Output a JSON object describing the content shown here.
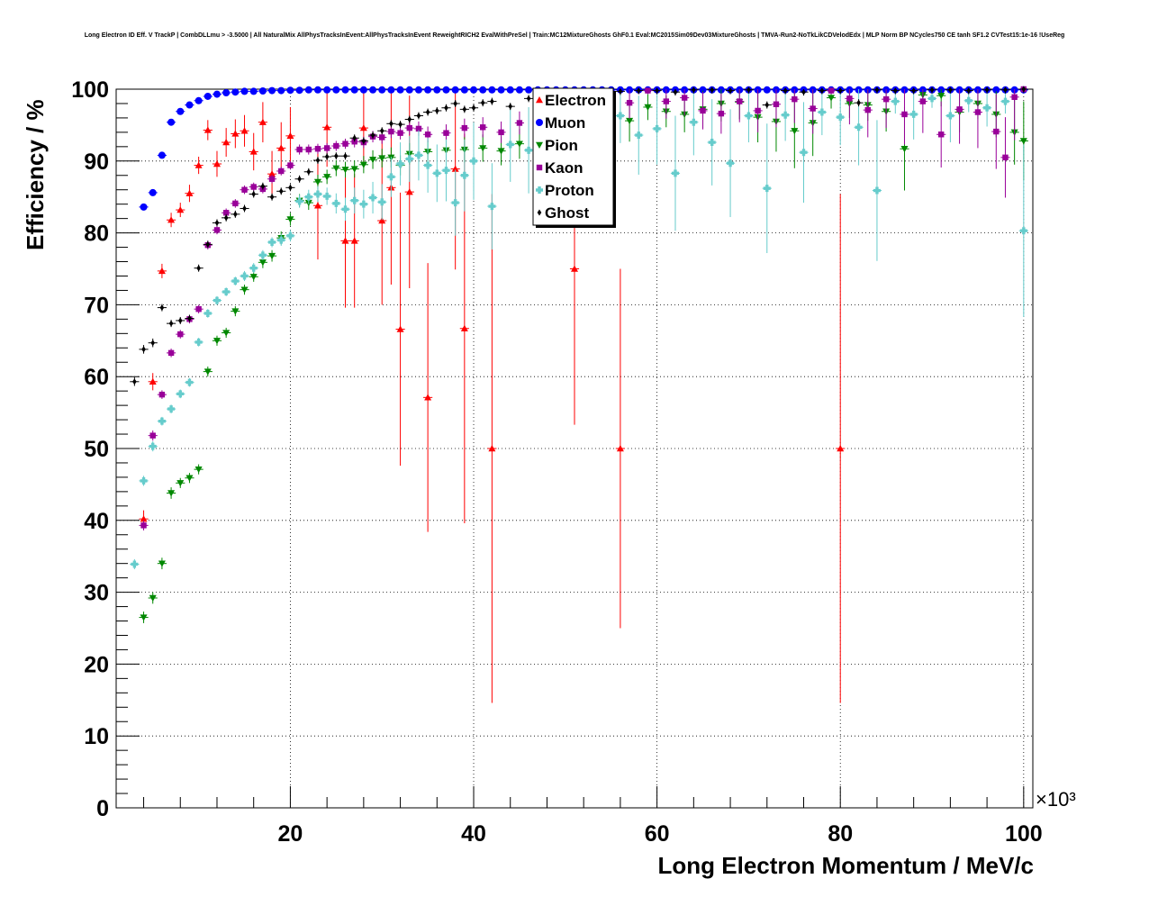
{
  "title": "Long Electron ID Eff. V TrackP | CombDLLmu > -3.5000 | All NaturalMix AllPhysTracksInEvent:AllPhysTracksInEvent ReweightRICH2 EvalWithPreSel | Train:MC12MixtureGhosts GhF0.1 Eval:MC2015Sim09Dev03MixtureGhosts | TMVA-Run2-NoTkLikCDVelodEdx | MLP Norm BP NCycles750 CE tanh SF1.2 CVTest15:1e-16 !UseReg",
  "chart_data": {
    "type": "scatter",
    "xlabel": "Long Electron Momentum / MeV/c",
    "ylabel": "Efficiency / %",
    "x_multiplier": "×10³",
    "xlim": [
      1000,
      101000
    ],
    "ylim": [
      0,
      100
    ],
    "x_ticks": [
      20000,
      40000,
      60000,
      80000,
      100000
    ],
    "x_tick_labels": [
      "20",
      "40",
      "60",
      "80",
      "100"
    ],
    "y_ticks": [
      0,
      10,
      20,
      30,
      40,
      50,
      60,
      70,
      80,
      90,
      100
    ],
    "y_tick_labels": [
      "0",
      "10",
      "20",
      "30",
      "40",
      "50",
      "60",
      "70",
      "80",
      "90",
      "100"
    ],
    "grid": true,
    "legend_position": "top-center",
    "series": [
      {
        "name": "Electron",
        "color": "#ff0000",
        "marker": "triangle-up",
        "x": [
          4000,
          5000,
          6000,
          7000,
          8000,
          9000,
          10000,
          11000,
          12000,
          13000,
          14000,
          15000,
          16000,
          17000,
          18000,
          19000,
          20000,
          23000,
          24000,
          26000,
          27000,
          28000,
          30000,
          31000,
          32000,
          33000,
          35000,
          38000,
          39000,
          42000,
          51000,
          56000,
          80000
        ],
        "y": [
          40.2,
          59.3,
          74.7,
          81.8,
          83.2,
          85.5,
          89.4,
          94.3,
          89.6,
          92.6,
          93.8,
          94.2,
          91.3,
          95.4,
          88.2,
          91.8,
          93.5,
          83.8,
          94.7,
          78.9,
          78.9,
          94.6,
          81.7,
          86.3,
          66.6,
          85.7,
          57.1,
          88.9,
          66.7,
          50.0,
          75.0,
          50.0,
          50.0
        ],
        "err": [
          1.2,
          1.2,
          1.0,
          1.0,
          1.0,
          1.2,
          1.2,
          1.4,
          1.8,
          2.0,
          2.0,
          2.2,
          2.6,
          2.8,
          3.2,
          3.6,
          4.0,
          7.5,
          5.5,
          9.3,
          9.3,
          5.5,
          11.7,
          13.5,
          19.0,
          13.4,
          18.7,
          14.0,
          27.1,
          35.4,
          21.7,
          25.0,
          35.4
        ]
      },
      {
        "name": "Muon",
        "color": "#0000ff",
        "marker": "circle",
        "x": [
          4000,
          5000,
          6000,
          7000,
          8000,
          9000,
          10000,
          11000,
          12000,
          13000,
          14000,
          15000,
          16000,
          17000,
          18000,
          19000,
          20000,
          21000,
          22000,
          23000,
          24000,
          25000,
          26000,
          27000,
          28000,
          29000,
          30000,
          31000,
          32000,
          33000,
          34000,
          35000,
          36000,
          37000,
          38000,
          39000,
          40000,
          41000,
          42000,
          43000,
          44000,
          45000,
          46000,
          47000,
          48000,
          49000,
          50000,
          51000,
          52000,
          53000,
          54000,
          55000,
          56000,
          57000,
          58000,
          59000,
          60000,
          61000,
          62000,
          63000,
          64000,
          65000,
          66000,
          67000,
          68000,
          69000,
          70000,
          71000,
          72000,
          73000,
          74000,
          75000,
          76000,
          77000,
          78000,
          79000,
          80000,
          81000,
          82000,
          83000,
          84000,
          85000,
          86000,
          87000,
          88000,
          89000,
          90000,
          91000,
          92000,
          93000,
          94000,
          95000,
          96000,
          97000,
          98000,
          99000,
          100000
        ],
        "y": [
          83.6,
          85.6,
          90.8,
          95.4,
          96.9,
          97.8,
          98.4,
          99.0,
          99.3,
          99.5,
          99.6,
          99.7,
          99.7,
          99.75,
          99.8,
          99.8,
          99.85,
          99.85,
          99.9,
          99.9,
          99.9,
          99.9,
          99.9,
          99.9,
          99.9,
          99.9,
          99.9,
          99.9,
          99.9,
          99.9,
          99.9,
          99.9,
          99.9,
          99.9,
          99.9,
          99.9,
          99.9,
          99.9,
          99.9,
          99.9,
          99.9,
          99.9,
          99.9,
          99.9,
          99.9,
          99.9,
          99.9,
          99.9,
          99.9,
          99.9,
          99.9,
          99.9,
          99.9,
          99.9,
          99.9,
          99.9,
          99.9,
          99.9,
          99.9,
          99.9,
          99.9,
          99.9,
          99.9,
          99.9,
          99.9,
          99.9,
          99.9,
          99.9,
          99.9,
          99.9,
          99.9,
          99.9,
          99.9,
          99.9,
          99.9,
          99.9,
          99.9,
          99.9,
          99.9,
          99.9,
          99.9,
          99.9,
          99.9,
          99.9,
          99.9,
          99.9,
          99.9,
          99.9,
          99.9,
          99.9,
          99.9,
          99.9,
          99.9,
          99.9,
          99.9,
          99.9,
          99.9
        ],
        "err": []
      },
      {
        "name": "Pion",
        "color": "#008800",
        "marker": "triangle-down",
        "x": [
          4000,
          5000,
          6000,
          7000,
          8000,
          9000,
          10000,
          11000,
          12000,
          13000,
          14000,
          15000,
          16000,
          17000,
          18000,
          19000,
          20000,
          21000,
          22000,
          23000,
          24000,
          25000,
          26000,
          27000,
          28000,
          29000,
          30000,
          31000,
          32000,
          33000,
          35000,
          37000,
          39000,
          41000,
          43000,
          45000,
          47000,
          49000,
          51000,
          53000,
          55000,
          57000,
          59000,
          61000,
          63000,
          65000,
          67000,
          69000,
          71000,
          73000,
          75000,
          77000,
          79000,
          81000,
          83000,
          85000,
          87000,
          89000,
          91000,
          93000,
          95000,
          97000,
          99000,
          100000
        ],
        "y": [
          26.5,
          29.2,
          34.0,
          43.8,
          45.2,
          45.9,
          47.1,
          60.7,
          65.0,
          66.1,
          69.1,
          72.1,
          73.9,
          75.9,
          76.8,
          79.3,
          81.9,
          84.5,
          84.2,
          87.1,
          87.8,
          89.0,
          88.8,
          88.9,
          89.5,
          90.2,
          90.4,
          90.5,
          89.4,
          91.0,
          91.3,
          91.5,
          91.6,
          91.8,
          91.4,
          92.4,
          92.9,
          93.0,
          95.0,
          93.2,
          94.8,
          95.6,
          97.5,
          96.9,
          96.5,
          97.2,
          98.0,
          98.2,
          96.1,
          95.5,
          94.2,
          95.3,
          98.8,
          98.0,
          97.8,
          96.9,
          91.7,
          99.2,
          99.1,
          96.8,
          98.0,
          96.5,
          94.0,
          92.8
        ],
        "err": [
          0.8,
          0.8,
          0.8,
          0.8,
          0.7,
          0.7,
          0.7,
          0.7,
          0.7,
          0.7,
          0.7,
          0.7,
          0.7,
          0.8,
          0.8,
          0.9,
          0.9,
          0.9,
          1.0,
          1.0,
          1.0,
          1.1,
          1.1,
          1.2,
          1.2,
          1.3,
          1.3,
          1.4,
          1.4,
          1.5,
          1.6,
          1.7,
          1.8,
          1.9,
          2.0,
          2.1,
          2.3,
          2.4,
          2.5,
          2.6,
          2.8,
          2.9,
          1.8,
          2.2,
          2.5,
          2.6,
          2.5,
          2.4,
          3.5,
          4.2,
          5.2,
          4.6,
          1.5,
          2.0,
          2.2,
          2.8,
          5.8,
          1.3,
          1.5,
          2.8,
          2.2,
          3.2,
          4.5,
          5.5
        ]
      },
      {
        "name": "Kaon",
        "color": "#990099",
        "marker": "square",
        "x": [
          4000,
          5000,
          6000,
          7000,
          8000,
          9000,
          10000,
          11000,
          12000,
          13000,
          14000,
          15000,
          16000,
          17000,
          18000,
          19000,
          20000,
          21000,
          22000,
          23000,
          24000,
          25000,
          26000,
          27000,
          28000,
          29000,
          30000,
          31000,
          32000,
          33000,
          34000,
          35000,
          37000,
          39000,
          41000,
          43000,
          45000,
          47000,
          49000,
          51000,
          53000,
          55000,
          57000,
          59000,
          61000,
          63000,
          65000,
          67000,
          69000,
          71000,
          73000,
          75000,
          77000,
          79000,
          81000,
          83000,
          85000,
          87000,
          89000,
          91000,
          93000,
          95000,
          97000,
          98000,
          99000,
          100000
        ],
        "y": [
          39.3,
          51.8,
          57.5,
          63.3,
          65.9,
          68.0,
          69.4,
          78.3,
          80.4,
          82.8,
          84.1,
          86.0,
          86.4,
          86.1,
          87.5,
          88.6,
          89.4,
          91.6,
          91.6,
          91.7,
          91.8,
          92.1,
          92.4,
          92.7,
          92.6,
          93.4,
          93.3,
          94.1,
          93.9,
          94.6,
          94.5,
          93.7,
          93.9,
          94.6,
          94.7,
          94.0,
          95.3,
          96.1,
          96.6,
          96.9,
          97.8,
          98.0,
          98.1,
          99.8,
          98.3,
          98.8,
          97.0,
          96.6,
          98.3,
          97.0,
          97.9,
          98.6,
          97.3,
          99.8,
          98.7,
          97.1,
          98.6,
          96.5,
          98.3,
          93.7,
          97.2,
          96.8,
          94.1,
          90.5,
          98.9,
          100.0
        ],
        "err": [
          0.7,
          0.7,
          0.6,
          0.6,
          0.6,
          0.6,
          0.6,
          0.6,
          0.6,
          0.6,
          0.6,
          0.6,
          0.6,
          0.6,
          0.6,
          0.6,
          0.6,
          0.7,
          0.7,
          0.7,
          0.7,
          0.7,
          0.7,
          0.8,
          0.8,
          0.8,
          0.9,
          0.9,
          0.9,
          1.0,
          1.0,
          1.1,
          1.2,
          1.3,
          1.4,
          1.5,
          1.6,
          1.7,
          1.8,
          1.9,
          2.0,
          2.1,
          2.2,
          0.5,
          2.4,
          2.5,
          2.6,
          2.8,
          2.9,
          3.0,
          3.2,
          3.3,
          3.5,
          0.5,
          3.6,
          3.8,
          4.0,
          4.2,
          4.4,
          4.6,
          4.8,
          5.0,
          5.2,
          5.6,
          6.0,
          0.5
        ]
      },
      {
        "name": "Proton",
        "color": "#66cccc",
        "marker": "cross",
        "x": [
          3000,
          4000,
          5000,
          6000,
          7000,
          8000,
          9000,
          10000,
          11000,
          12000,
          13000,
          14000,
          15000,
          16000,
          17000,
          18000,
          19000,
          20000,
          21000,
          22000,
          23000,
          24000,
          25000,
          26000,
          27000,
          28000,
          29000,
          30000,
          31000,
          32000,
          33000,
          34000,
          35000,
          36000,
          37000,
          38000,
          39000,
          40000,
          42000,
          44000,
          46000,
          48000,
          50000,
          52000,
          54000,
          56000,
          58000,
          60000,
          62000,
          64000,
          66000,
          68000,
          70000,
          72000,
          74000,
          76000,
          78000,
          80000,
          82000,
          84000,
          86000,
          88000,
          90000,
          92000,
          94000,
          96000,
          98000,
          100000
        ],
        "y": [
          33.9,
          45.5,
          50.3,
          53.8,
          55.5,
          57.6,
          59.2,
          64.8,
          68.8,
          70.6,
          71.8,
          73.3,
          74.0,
          75.1,
          76.9,
          78.7,
          79.0,
          79.6,
          84.4,
          85.0,
          85.4,
          85.1,
          84.1,
          83.3,
          84.5,
          84.0,
          84.9,
          84.3,
          87.8,
          89.6,
          90.3,
          90.8,
          89.4,
          88.3,
          88.7,
          84.2,
          88.0,
          90.0,
          83.7,
          92.3,
          91.5,
          92.9,
          94.0,
          90.5,
          92.4,
          96.3,
          93.6,
          94.5,
          88.3,
          95.4,
          92.6,
          89.7,
          96.3,
          86.2,
          96.4,
          91.2,
          96.8,
          96.1,
          94.7,
          85.9,
          98.3,
          96.5,
          98.7,
          96.3,
          98.4,
          97.4,
          98.3,
          80.3
        ],
        "err": [
          0.7,
          0.7,
          0.7,
          0.6,
          0.6,
          0.6,
          0.6,
          0.6,
          0.6,
          0.6,
          0.6,
          0.6,
          0.7,
          0.7,
          0.7,
          0.7,
          0.8,
          0.8,
          0.9,
          1.0,
          1.1,
          1.2,
          1.4,
          1.6,
          1.8,
          2.0,
          2.2,
          2.5,
          2.8,
          3.0,
          3.2,
          3.5,
          3.8,
          4.0,
          4.3,
          4.6,
          5.0,
          5.4,
          6.0,
          5.2,
          6.0,
          5.0,
          5.0,
          7.0,
          6.0,
          3.8,
          5.5,
          5.0,
          8.0,
          4.6,
          6.0,
          7.5,
          3.7,
          9.0,
          3.6,
          7.0,
          3.2,
          3.9,
          5.3,
          9.8,
          1.7,
          3.5,
          1.3,
          3.7,
          1.6,
          2.6,
          1.7,
          12.0
        ]
      },
      {
        "name": "Ghost",
        "color": "#000000",
        "marker": "diamond",
        "x": [
          3000,
          4000,
          5000,
          6000,
          7000,
          8000,
          9000,
          10000,
          11000,
          12000,
          13000,
          14000,
          15000,
          16000,
          17000,
          18000,
          19000,
          20000,
          21000,
          22000,
          23000,
          24000,
          25000,
          26000,
          27000,
          28000,
          29000,
          30000,
          31000,
          32000,
          33000,
          34000,
          35000,
          36000,
          37000,
          38000,
          39000,
          40000,
          41000,
          42000,
          44000,
          46000,
          48000,
          50000,
          52000,
          54000,
          56000,
          58000,
          60000,
          62000,
          64000,
          66000,
          68000,
          70000,
          72000,
          74000,
          76000,
          78000,
          80000,
          82000,
          84000,
          86000,
          88000,
          90000,
          92000,
          94000,
          96000,
          98000,
          100000
        ],
        "y": [
          59.3,
          63.8,
          64.7,
          69.6,
          67.4,
          67.8,
          68.1,
          75.1,
          78.4,
          81.4,
          82.1,
          82.6,
          83.4,
          85.4,
          86.5,
          85.0,
          85.8,
          86.3,
          87.5,
          88.5,
          90.1,
          90.6,
          90.7,
          90.7,
          93.2,
          92.8,
          93.6,
          94.2,
          95.2,
          95.1,
          95.8,
          96.3,
          96.8,
          97.0,
          97.4,
          98.0,
          97.2,
          97.4,
          98.1,
          98.3,
          97.6,
          98.7,
          98.8,
          99.3,
          99.1,
          99.4,
          99.7,
          99.8,
          99.8,
          99.6,
          99.9,
          99.9,
          99.8,
          99.9,
          97.8,
          99.8,
          99.6,
          99.8,
          99.8,
          98.1,
          99.9,
          99.8,
          99.8,
          99.9,
          99.9,
          99.8,
          99.9,
          99.9,
          100.0
        ],
        "err": [
          0.6,
          0.6,
          0.6,
          0.5,
          0.5,
          0.5,
          0.5,
          0.5,
          0.5,
          0.5,
          0.5,
          0.5,
          0.5,
          0.5,
          0.5,
          0.5,
          0.5,
          0.5,
          0.5,
          0.5,
          0.5,
          0.5,
          0.5,
          0.5,
          0.5,
          0.5,
          0.5,
          0.5,
          0.5,
          0.5,
          0.5,
          0.5,
          0.5,
          0.5,
          0.5,
          0.5,
          0.5,
          0.5,
          0.5,
          0.5,
          0.5,
          0.5,
          0.5,
          0.5,
          0.5,
          0.5,
          0.5,
          0.5,
          0.5,
          0.5,
          0.5,
          0.5,
          0.5,
          0.5,
          0.5,
          0.5,
          0.5,
          0.5,
          0.5,
          0.5,
          0.5,
          0.5,
          0.5,
          0.5,
          0.5,
          0.5,
          0.5,
          0.5,
          0.5
        ]
      }
    ]
  }
}
